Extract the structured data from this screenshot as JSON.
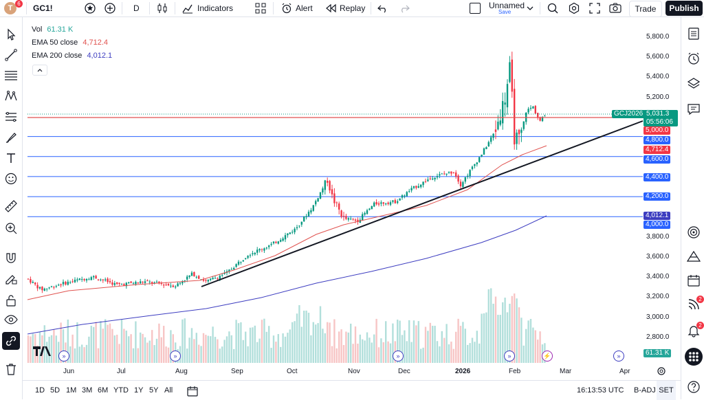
{
  "header": {
    "avatar_letter": "T",
    "avatar_badge": "6",
    "symbol": "GC1!",
    "interval": "D",
    "indicators_label": "Indicators",
    "alert_label": "Alert",
    "replay_label": "Replay",
    "layout_name": "Unnamed",
    "layout_status": "Save",
    "trade_label": "Trade",
    "publish_label": "Publish"
  },
  "legend": {
    "vol_label": "Vol",
    "vol_value": "61.31 K",
    "ema50_label": "EMA 50 close",
    "ema50_value": "4,712.4",
    "ema200_label": "EMA 200 close",
    "ema200_value": "4,012.1"
  },
  "price_axis": [
    "5,800.0",
    "5,600.0",
    "5,400.0",
    "5,200.0",
    "3,800.0",
    "3,600.0",
    "3,400.0",
    "3,200.0",
    "3,000.0",
    "2,800.0"
  ],
  "tags": {
    "symbol_tag": "GCJ2026",
    "last_price": "5,031.3",
    "countdown": "05:56:06",
    "level_5000": "5,000.0",
    "level_4800": "4,800.0",
    "ema50": "4,712.4",
    "level_4600": "4,600.0",
    "level_4400": "4,400.0",
    "level_4200": "4,200.0",
    "ema200": "4,012.1",
    "level_4000": "4,000.0",
    "volume": "61.31 K"
  },
  "time_axis": [
    "Jun",
    "Jul",
    "Aug",
    "Sep",
    "Oct",
    "Nov",
    "Dec",
    "2026",
    "Feb",
    "Mar",
    "Apr"
  ],
  "bottom": {
    "ranges": [
      "1D",
      "5D",
      "1M",
      "3M",
      "6M",
      "YTD",
      "1Y",
      "5Y",
      "All"
    ],
    "clock": "16:13:53 UTC",
    "adj": "B-ADJ",
    "session": "SET"
  },
  "notifications": {
    "alerts_badge": "2",
    "bell_badge": "2"
  },
  "colors": {
    "up": "#089981",
    "down": "#f23645",
    "ema50": "#e0524f",
    "ema200": "#3c3cc0",
    "hline": "#2962ff"
  }
}
